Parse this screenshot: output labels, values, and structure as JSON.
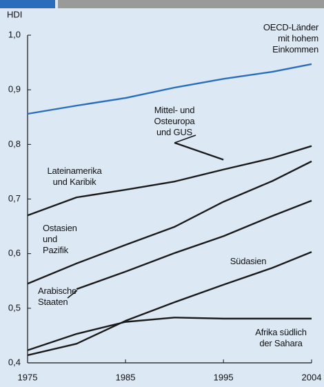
{
  "chart_data": {
    "type": "line",
    "y_label": "HDI",
    "x": [
      1975,
      1980,
      1985,
      1990,
      1995,
      2000,
      2004
    ],
    "xlim": [
      1975,
      2004
    ],
    "xticks": [
      1975,
      1985,
      1995,
      2004
    ],
    "ylim": [
      0.4,
      1.0
    ],
    "yticks": [
      {
        "value": 0.4,
        "label": "0,4"
      },
      {
        "value": 0.5,
        "label": "0,5"
      },
      {
        "value": 0.6,
        "label": "0,6"
      },
      {
        "value": 0.7,
        "label": "0,7"
      },
      {
        "value": 0.8,
        "label": "0,8"
      },
      {
        "value": 0.9,
        "label": "0,9"
      },
      {
        "value": 1.0,
        "label": "1,0"
      }
    ],
    "series": [
      {
        "name": "OECD-Länder\nmit hohem\nEinkommen",
        "color": "#2a6ebb",
        "values": [
          0.856,
          0.871,
          0.885,
          0.904,
          0.92,
          0.933,
          0.947
        ]
      },
      {
        "name": "Mittel- und\nOsteuropa\nund GUS",
        "color": "#1a1a1a",
        "values": [
          null,
          null,
          null,
          0.803,
          0.772,
          null,
          0.806
        ]
      },
      {
        "name": "Lateinamerika\nund Karibik",
        "color": "#1a1a1a",
        "values": [
          0.67,
          0.703,
          0.717,
          0.732,
          0.754,
          0.775,
          0.797
        ]
      },
      {
        "name": "Ostasien\nund\nPazifik",
        "color": "#1a1a1a",
        "values": [
          0.545,
          0.582,
          0.616,
          0.649,
          0.695,
          0.733,
          0.769
        ]
      },
      {
        "name": "Arabische\nStaaten",
        "color": "#1a1a1a",
        "values": [
          null,
          0.535,
          0.567,
          0.601,
          0.632,
          0.669,
          0.697
        ]
      },
      {
        "name": "Südasien",
        "color": "#1a1a1a",
        "values": [
          0.414,
          0.435,
          0.477,
          0.511,
          0.543,
          0.574,
          0.603
        ]
      },
      {
        "name": "Afrika südlich\nder Sahara",
        "color": "#1a1a1a",
        "values": [
          0.423,
          0.453,
          0.475,
          0.483,
          0.481,
          0.481,
          0.481
        ]
      }
    ]
  }
}
